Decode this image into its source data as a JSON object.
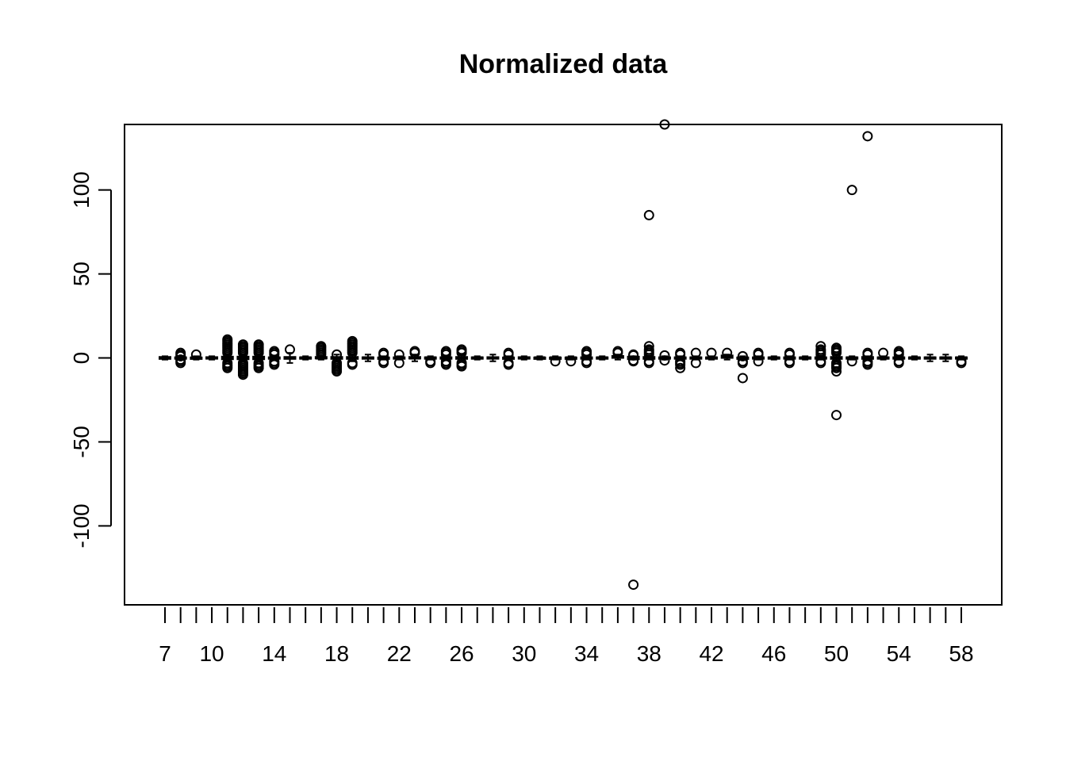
{
  "chart_data": {
    "type": "boxplot",
    "title": "Normalized data",
    "xlabel": "",
    "ylabel": "",
    "x_range": [
      7,
      58
    ],
    "ylim": [
      -147,
      139
    ],
    "x_tick_labels": [
      "7",
      "10",
      "14",
      "18",
      "22",
      "26",
      "30",
      "34",
      "38",
      "42",
      "46",
      "50",
      "54",
      "58"
    ],
    "y_tick_labels": [
      "-100",
      "-50",
      "0",
      "50",
      "100"
    ],
    "y_ticks": [
      -100,
      -50,
      0,
      50,
      100
    ],
    "box_color": "#000000",
    "boxes": [
      {
        "x": 7,
        "q1": -0.6,
        "median": 0,
        "q3": 0.6,
        "wmin": -1,
        "wmax": 1,
        "outliers": []
      },
      {
        "x": 8,
        "q1": -0.4,
        "median": 0,
        "q3": 0.4,
        "wmin": -1,
        "wmax": 1,
        "outliers": [
          -3,
          -2,
          -1,
          1,
          2,
          3
        ]
      },
      {
        "x": 9,
        "q1": -0.3,
        "median": 0,
        "q3": 0.3,
        "wmin": -1,
        "wmax": 1,
        "outliers": [
          2
        ]
      },
      {
        "x": 10,
        "q1": -0.5,
        "median": 0,
        "q3": 0.5,
        "wmin": -1,
        "wmax": 1,
        "outliers": []
      },
      {
        "x": 11,
        "q1": -0.8,
        "median": 0,
        "q3": 0.8,
        "wmin": -2,
        "wmax": 2,
        "outliers": [
          -6,
          -5,
          -4,
          -3,
          3,
          4,
          5,
          6,
          7,
          8,
          9,
          10,
          11
        ]
      },
      {
        "x": 12,
        "q1": -0.8,
        "median": 0,
        "q3": 0.8,
        "wmin": -2,
        "wmax": 2,
        "outliers": [
          -10,
          -9,
          -8,
          -7,
          -6,
          -5,
          -4,
          -3,
          3,
          4,
          5,
          6,
          7,
          8
        ]
      },
      {
        "x": 13,
        "q1": -0.8,
        "median": 0,
        "q3": 0.8,
        "wmin": -2,
        "wmax": 2,
        "outliers": [
          -6,
          -5,
          -4,
          -3,
          3,
          4,
          5,
          6,
          7,
          8
        ]
      },
      {
        "x": 14,
        "q1": -0.4,
        "median": 0,
        "q3": 0.4,
        "wmin": -1,
        "wmax": 1,
        "outliers": [
          -4,
          -3,
          -2,
          2,
          3,
          4
        ]
      },
      {
        "x": 15,
        "q1": -0.6,
        "median": 0,
        "q3": 0.6,
        "wmin": -3,
        "wmax": 3,
        "outliers": [
          5
        ]
      },
      {
        "x": 16,
        "q1": -0.4,
        "median": 0,
        "q3": 0.4,
        "wmin": -1,
        "wmax": 1,
        "outliers": []
      },
      {
        "x": 17,
        "q1": -0.3,
        "median": 0,
        "q3": 0.6,
        "wmin": -1,
        "wmax": 1,
        "outliers": [
          2,
          3,
          4,
          5,
          6,
          7
        ]
      },
      {
        "x": 18,
        "q1": -0.6,
        "median": 0,
        "q3": 0.6,
        "wmin": -2,
        "wmax": 2,
        "outliers": [
          -8,
          -7,
          -6,
          -5,
          -4,
          -3,
          2
        ]
      },
      {
        "x": 19,
        "q1": -0.6,
        "median": 0,
        "q3": 0.6,
        "wmin": -2,
        "wmax": 2,
        "outliers": [
          -4,
          -3,
          3,
          4,
          5,
          6,
          7,
          8,
          9,
          10
        ]
      },
      {
        "x": 20,
        "q1": -0.4,
        "median": 0,
        "q3": 0.4,
        "wmin": -2,
        "wmax": 2,
        "outliers": []
      },
      {
        "x": 21,
        "q1": -0.3,
        "median": 0,
        "q3": 0.3,
        "wmin": -1,
        "wmax": 1,
        "outliers": [
          -3,
          -2,
          2,
          3
        ]
      },
      {
        "x": 22,
        "q1": -0.4,
        "median": 0,
        "q3": 0.4,
        "wmin": -1,
        "wmax": 1,
        "outliers": [
          -3,
          2
        ]
      },
      {
        "x": 23,
        "q1": -0.4,
        "median": 0,
        "q3": 0.6,
        "wmin": -2,
        "wmax": 2,
        "outliers": [
          3,
          4
        ]
      },
      {
        "x": 24,
        "q1": -0.4,
        "median": 0,
        "q3": 0.4,
        "wmin": -1,
        "wmax": 1,
        "outliers": [
          -3,
          -2
        ]
      },
      {
        "x": 25,
        "q1": -0.4,
        "median": 0,
        "q3": 0.4,
        "wmin": -1,
        "wmax": 1,
        "outliers": [
          -4,
          -3,
          -2,
          2,
          3,
          4
        ]
      },
      {
        "x": 26,
        "q1": -0.6,
        "median": 0,
        "q3": 0.6,
        "wmin": -2,
        "wmax": 2,
        "outliers": [
          -5,
          -4,
          -3,
          3,
          4,
          5
        ]
      },
      {
        "x": 27,
        "q1": -0.4,
        "median": 0,
        "q3": 0.4,
        "wmin": -1,
        "wmax": 1,
        "outliers": []
      },
      {
        "x": 28,
        "q1": -0.5,
        "median": 0,
        "q3": 0.5,
        "wmin": -2,
        "wmax": 2,
        "outliers": []
      },
      {
        "x": 29,
        "q1": -0.3,
        "median": 0,
        "q3": 0.3,
        "wmin": -1,
        "wmax": 1,
        "outliers": [
          -4,
          -3,
          2,
          3
        ]
      },
      {
        "x": 30,
        "q1": -0.5,
        "median": 0,
        "q3": 0.5,
        "wmin": -1,
        "wmax": 1,
        "outliers": []
      },
      {
        "x": 31,
        "q1": -0.3,
        "median": 0,
        "q3": 0.3,
        "wmin": -1,
        "wmax": 1,
        "outliers": []
      },
      {
        "x": 32,
        "q1": -0.3,
        "median": 0,
        "q3": 0.3,
        "wmin": -1,
        "wmax": 1,
        "outliers": [
          -2
        ]
      },
      {
        "x": 33,
        "q1": -0.3,
        "median": 0,
        "q3": 0.3,
        "wmin": -1,
        "wmax": 1,
        "outliers": [
          -2
        ]
      },
      {
        "x": 34,
        "q1": -0.4,
        "median": 0,
        "q3": 0.4,
        "wmin": -1,
        "wmax": 1,
        "outliers": [
          -3,
          -2,
          2,
          3,
          4
        ]
      },
      {
        "x": 35,
        "q1": -0.4,
        "median": 0,
        "q3": 0.4,
        "wmin": -1,
        "wmax": 1,
        "outliers": []
      },
      {
        "x": 36,
        "q1": 0,
        "median": 0.5,
        "q3": 1.2,
        "wmin": -1,
        "wmax": 2,
        "outliers": [
          3,
          4
        ]
      },
      {
        "x": 37,
        "q1": -0.8,
        "median": 0,
        "q3": 0.8,
        "wmin": -1,
        "wmax": 1,
        "outliers": [
          -135,
          -2,
          -1.5,
          1.5,
          2
        ]
      },
      {
        "x": 38,
        "q1": -0.6,
        "median": 0,
        "q3": 0.6,
        "wmin": -1,
        "wmax": 1,
        "outliers": [
          -3,
          -2,
          2,
          3,
          4,
          5,
          7,
          85
        ]
      },
      {
        "x": 39,
        "q1": -0.4,
        "median": 0,
        "q3": 0.4,
        "wmin": -1,
        "wmax": 1,
        "outliers": [
          -1.5,
          1.5,
          139
        ]
      },
      {
        "x": 40,
        "q1": -0.4,
        "median": 0,
        "q3": 0.4,
        "wmin": -1,
        "wmax": 1,
        "outliers": [
          -6,
          -4,
          -3,
          -2,
          2,
          3
        ]
      },
      {
        "x": 41,
        "q1": -0.4,
        "median": 0,
        "q3": 0.4,
        "wmin": -1,
        "wmax": 1,
        "outliers": [
          -3,
          3
        ]
      },
      {
        "x": 42,
        "q1": -0.4,
        "median": 0,
        "q3": 0.4,
        "wmin": -1,
        "wmax": 1,
        "outliers": [
          3
        ]
      },
      {
        "x": 43,
        "q1": 0,
        "median": 0.5,
        "q3": 1.5,
        "wmin": -1,
        "wmax": 2,
        "outliers": [
          3
        ]
      },
      {
        "x": 44,
        "q1": -0.3,
        "median": 0,
        "q3": 0.3,
        "wmin": -1,
        "wmax": 1,
        "outliers": [
          -12,
          -3,
          -2,
          1
        ]
      },
      {
        "x": 45,
        "q1": -0.4,
        "median": 0,
        "q3": 0.4,
        "wmin": -1,
        "wmax": 1,
        "outliers": [
          -2,
          2,
          3
        ]
      },
      {
        "x": 46,
        "q1": -0.4,
        "median": 0,
        "q3": 0.4,
        "wmin": -1,
        "wmax": 1,
        "outliers": []
      },
      {
        "x": 47,
        "q1": -0.4,
        "median": 0,
        "q3": 0.4,
        "wmin": -1,
        "wmax": 1,
        "outliers": [
          -3,
          -2,
          2,
          3
        ]
      },
      {
        "x": 48,
        "q1": -0.4,
        "median": 0,
        "q3": 0.4,
        "wmin": -1,
        "wmax": 1,
        "outliers": []
      },
      {
        "x": 49,
        "q1": -0.4,
        "median": 0,
        "q3": 0.4,
        "wmin": -1,
        "wmax": 1,
        "outliers": [
          -3,
          -2,
          2,
          3,
          4,
          5,
          7
        ]
      },
      {
        "x": 50,
        "q1": -0.6,
        "median": 0,
        "q3": 0.6,
        "wmin": -2,
        "wmax": 2,
        "outliers": [
          -34,
          -8,
          -6,
          -5,
          -4,
          -3,
          3,
          4,
          5,
          6
        ]
      },
      {
        "x": 51,
        "q1": -0.4,
        "median": 0,
        "q3": 0.4,
        "wmin": -1,
        "wmax": 1,
        "outliers": [
          -2,
          100
        ]
      },
      {
        "x": 52,
        "q1": -0.6,
        "median": 0,
        "q3": 0.6,
        "wmin": -1,
        "wmax": 1,
        "outliers": [
          -4,
          -3,
          -2,
          2,
          3,
          132
        ]
      },
      {
        "x": 53,
        "q1": -0.4,
        "median": 0,
        "q3": 0.4,
        "wmin": -1,
        "wmax": 1,
        "outliers": [
          3
        ]
      },
      {
        "x": 54,
        "q1": -0.4,
        "median": 0,
        "q3": 0.4,
        "wmin": -1,
        "wmax": 1,
        "outliers": [
          -3,
          -2,
          2,
          3,
          4
        ]
      },
      {
        "x": 55,
        "q1": -0.4,
        "median": 0,
        "q3": 0.4,
        "wmin": -1,
        "wmax": 1,
        "outliers": []
      },
      {
        "x": 56,
        "q1": -0.4,
        "median": 0,
        "q3": 0.4,
        "wmin": -2,
        "wmax": 2,
        "outliers": []
      },
      {
        "x": 57,
        "q1": -0.4,
        "median": 0,
        "q3": 0.4,
        "wmin": -2,
        "wmax": 2,
        "outliers": []
      },
      {
        "x": 58,
        "q1": -0.4,
        "median": 0,
        "q3": 0.4,
        "wmin": -1,
        "wmax": 1,
        "outliers": [
          -3,
          -2
        ]
      }
    ]
  }
}
